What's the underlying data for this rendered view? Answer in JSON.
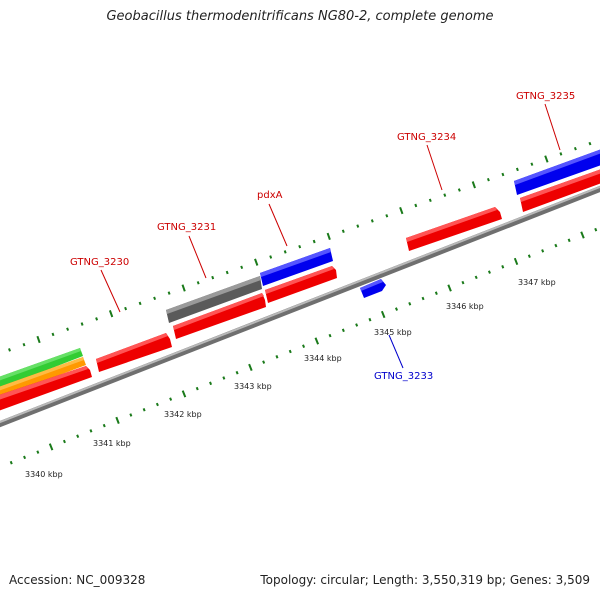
{
  "title": "Geobacillus thermodenitrificans NG80-2, complete genome",
  "footer": {
    "accession": "Accession: NC_009328",
    "summary": "Topology: circular; Length: 3,550,319 bp; Genes: 3,509"
  },
  "colors": {
    "forward_gene": "#ff0000",
    "reverse_gene": "#0000ff",
    "grey_feature": "#555555",
    "green_feature": "#33cc33",
    "orange_feature": "#ff9900",
    "backbone": "#888888",
    "tick": "#1a7a1a",
    "label_forward": "#cc0000",
    "label_reverse": "#0000cc"
  },
  "gene_labels": [
    {
      "text": "GTNG_3230",
      "color": "red"
    },
    {
      "text": "GTNG_3231",
      "color": "red"
    },
    {
      "text": "pdxA",
      "color": "red"
    },
    {
      "text": "GTNG_3234",
      "color": "red"
    },
    {
      "text": "GTNG_3235",
      "color": "red"
    },
    {
      "text": "GTNG_3233",
      "color": "blue"
    }
  ],
  "kbp_labels": [
    "3340 kbp",
    "3341 kbp",
    "3342 kbp",
    "3343 kbp",
    "3344 kbp",
    "3345 kbp",
    "3346 kbp",
    "3347 kbp"
  ]
}
